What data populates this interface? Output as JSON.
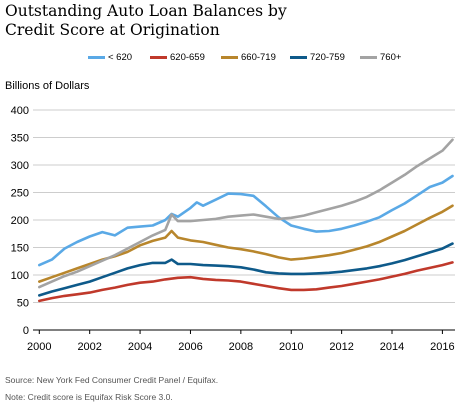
{
  "chart_data": {
    "type": "line",
    "title": "Outstanding Auto Loan Balances by\nCredit Score at Origination",
    "ylabel": "Billions of Dollars",
    "xlabel": "",
    "xlim": [
      1999.75,
      2016.5
    ],
    "ylim": [
      0,
      400
    ],
    "x_ticks": [
      2000,
      2002,
      2004,
      2006,
      2008,
      2010,
      2012,
      2014,
      2016
    ],
    "y_ticks": [
      0,
      50,
      100,
      150,
      200,
      250,
      300,
      350,
      400
    ],
    "grid": "horizontal",
    "legend_position": "top",
    "series": [
      {
        "name": "< 620",
        "color": "#5aa9e6",
        "points": [
          [
            2000,
            118
          ],
          [
            2000.5,
            128
          ],
          [
            2001,
            148
          ],
          [
            2001.5,
            160
          ],
          [
            2002,
            170
          ],
          [
            2002.5,
            178
          ],
          [
            2003,
            172
          ],
          [
            2003.5,
            186
          ],
          [
            2004,
            188
          ],
          [
            2004.5,
            190
          ],
          [
            2005,
            200
          ],
          [
            2005.25,
            211
          ],
          [
            2005.5,
            206
          ],
          [
            2006,
            222
          ],
          [
            2006.25,
            232
          ],
          [
            2006.5,
            226
          ],
          [
            2007,
            237
          ],
          [
            2007.5,
            248
          ],
          [
            2008,
            247
          ],
          [
            2008.5,
            244
          ],
          [
            2009,
            225
          ],
          [
            2009.5,
            205
          ],
          [
            2010,
            190
          ],
          [
            2010.5,
            184
          ],
          [
            2011,
            179
          ],
          [
            2011.5,
            180
          ],
          [
            2012,
            184
          ],
          [
            2012.5,
            190
          ],
          [
            2013,
            197
          ],
          [
            2013.5,
            205
          ],
          [
            2014,
            218
          ],
          [
            2014.5,
            230
          ],
          [
            2015,
            245
          ],
          [
            2015.5,
            260
          ],
          [
            2016,
            268
          ],
          [
            2016.4,
            280
          ]
        ]
      },
      {
        "name": "620-659",
        "color": "#c0392b",
        "points": [
          [
            2000,
            53
          ],
          [
            2000.5,
            58
          ],
          [
            2001,
            62
          ],
          [
            2001.5,
            65
          ],
          [
            2002,
            68
          ],
          [
            2002.5,
            73
          ],
          [
            2003,
            77
          ],
          [
            2003.5,
            82
          ],
          [
            2004,
            86
          ],
          [
            2004.5,
            88
          ],
          [
            2005,
            92
          ],
          [
            2005.5,
            95
          ],
          [
            2006,
            96
          ],
          [
            2006.5,
            93
          ],
          [
            2007,
            91
          ],
          [
            2007.5,
            90
          ],
          [
            2008,
            88
          ],
          [
            2008.5,
            84
          ],
          [
            2009,
            80
          ],
          [
            2009.5,
            76
          ],
          [
            2010,
            73
          ],
          [
            2010.5,
            73
          ],
          [
            2011,
            74
          ],
          [
            2011.5,
            77
          ],
          [
            2012,
            80
          ],
          [
            2012.5,
            84
          ],
          [
            2013,
            88
          ],
          [
            2013.5,
            92
          ],
          [
            2014,
            97
          ],
          [
            2014.5,
            102
          ],
          [
            2015,
            108
          ],
          [
            2015.5,
            113
          ],
          [
            2016,
            118
          ],
          [
            2016.4,
            123
          ]
        ]
      },
      {
        "name": "660-719",
        "color": "#b8862c",
        "points": [
          [
            2000,
            88
          ],
          [
            2000.5,
            96
          ],
          [
            2001,
            104
          ],
          [
            2001.5,
            112
          ],
          [
            2002,
            120
          ],
          [
            2002.5,
            128
          ],
          [
            2003,
            134
          ],
          [
            2003.5,
            142
          ],
          [
            2004,
            154
          ],
          [
            2004.5,
            162
          ],
          [
            2005,
            168
          ],
          [
            2005.25,
            180
          ],
          [
            2005.5,
            168
          ],
          [
            2006,
            163
          ],
          [
            2006.5,
            160
          ],
          [
            2007,
            155
          ],
          [
            2007.5,
            150
          ],
          [
            2008,
            147
          ],
          [
            2008.5,
            143
          ],
          [
            2009,
            138
          ],
          [
            2009.5,
            132
          ],
          [
            2010,
            128
          ],
          [
            2010.5,
            130
          ],
          [
            2011,
            133
          ],
          [
            2011.5,
            136
          ],
          [
            2012,
            140
          ],
          [
            2012.5,
            146
          ],
          [
            2013,
            152
          ],
          [
            2013.5,
            160
          ],
          [
            2014,
            170
          ],
          [
            2014.5,
            180
          ],
          [
            2015,
            192
          ],
          [
            2015.5,
            204
          ],
          [
            2016,
            215
          ],
          [
            2016.4,
            226
          ]
        ]
      },
      {
        "name": "720-759",
        "color": "#0e5a8a",
        "points": [
          [
            2000,
            63
          ],
          [
            2000.5,
            70
          ],
          [
            2001,
            76
          ],
          [
            2001.5,
            82
          ],
          [
            2002,
            88
          ],
          [
            2002.5,
            96
          ],
          [
            2003,
            104
          ],
          [
            2003.5,
            112
          ],
          [
            2004,
            118
          ],
          [
            2004.5,
            122
          ],
          [
            2005,
            122
          ],
          [
            2005.25,
            128
          ],
          [
            2005.5,
            120
          ],
          [
            2006,
            120
          ],
          [
            2006.5,
            118
          ],
          [
            2007,
            117
          ],
          [
            2007.5,
            116
          ],
          [
            2008,
            114
          ],
          [
            2008.5,
            110
          ],
          [
            2009,
            105
          ],
          [
            2009.5,
            103
          ],
          [
            2010,
            102
          ],
          [
            2010.5,
            102
          ],
          [
            2011,
            103
          ],
          [
            2011.5,
            104
          ],
          [
            2012,
            106
          ],
          [
            2012.5,
            109
          ],
          [
            2013,
            112
          ],
          [
            2013.5,
            116
          ],
          [
            2014,
            121
          ],
          [
            2014.5,
            127
          ],
          [
            2015,
            134
          ],
          [
            2015.5,
            141
          ],
          [
            2016,
            148
          ],
          [
            2016.4,
            157
          ]
        ]
      },
      {
        "name": "760+",
        "color": "#a3a3a3",
        "points": [
          [
            2000,
            78
          ],
          [
            2000.5,
            88
          ],
          [
            2001,
            98
          ],
          [
            2001.5,
            106
          ],
          [
            2002,
            116
          ],
          [
            2002.5,
            126
          ],
          [
            2003,
            136
          ],
          [
            2003.5,
            148
          ],
          [
            2004,
            160
          ],
          [
            2004.5,
            172
          ],
          [
            2005,
            182
          ],
          [
            2005.25,
            210
          ],
          [
            2005.5,
            198
          ],
          [
            2006,
            198
          ],
          [
            2006.5,
            200
          ],
          [
            2007,
            202
          ],
          [
            2007.5,
            206
          ],
          [
            2008,
            208
          ],
          [
            2008.5,
            210
          ],
          [
            2009,
            206
          ],
          [
            2009.5,
            202
          ],
          [
            2010,
            204
          ],
          [
            2010.5,
            208
          ],
          [
            2011,
            214
          ],
          [
            2011.5,
            220
          ],
          [
            2012,
            226
          ],
          [
            2012.5,
            233
          ],
          [
            2013,
            242
          ],
          [
            2013.5,
            254
          ],
          [
            2014,
            268
          ],
          [
            2014.5,
            282
          ],
          [
            2015,
            298
          ],
          [
            2015.5,
            312
          ],
          [
            2016,
            326
          ],
          [
            2016.4,
            346
          ]
        ]
      }
    ]
  },
  "footer": {
    "source": "Source: New York Fed Consumer Credit Panel / Equifax.",
    "note": "Note: Credit score is Equifax Risk Score 3.0."
  }
}
